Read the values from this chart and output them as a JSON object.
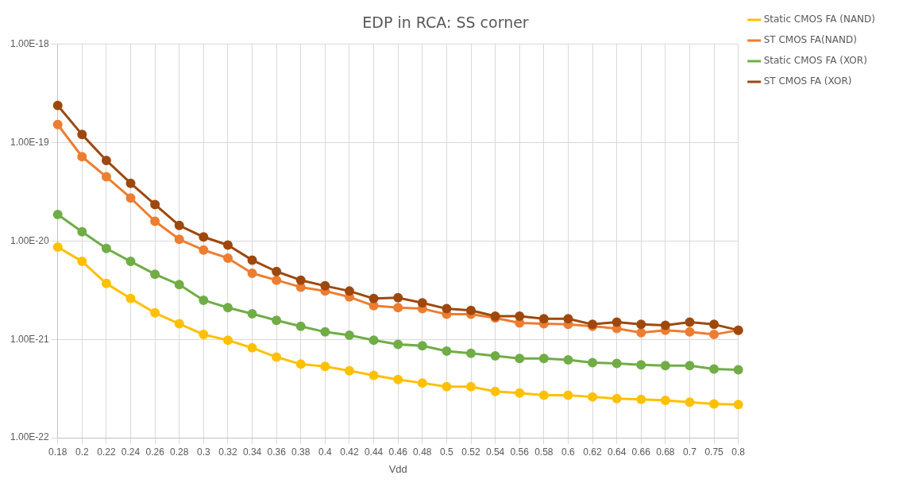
{
  "chart_data": {
    "type": "line",
    "title": "EDP in RCA: SS corner",
    "xlabel": "Vdd",
    "categories": [
      "0.18",
      "0.2",
      "0.22",
      "0.24",
      "0.26",
      "0.28",
      "0.3",
      "0.32",
      "0.34",
      "0.36",
      "0.38",
      "0.4",
      "0.42",
      "0.44",
      "0.46",
      "0.48",
      "0.5",
      "0.52",
      "0.54",
      "0.56",
      "0.58",
      "0.6",
      "0.62",
      "0.64",
      "0.66",
      "0.68",
      "0.7",
      "0.75",
      "0.8"
    ],
    "series": [
      {
        "name": "Static CMOS FA (NAND)",
        "color": "#ffc000",
        "values": [
          8.7e-21,
          6.2e-21,
          3.7e-21,
          2.6e-21,
          1.86e-21,
          1.44e-21,
          1.12e-21,
          9.8e-22,
          8.2e-22,
          6.6e-22,
          5.6e-22,
          5.3e-22,
          4.8e-22,
          4.3e-22,
          3.9e-22,
          3.6e-22,
          3.3e-22,
          3.3e-22,
          2.95e-22,
          2.85e-22,
          2.7e-22,
          2.7e-22,
          2.6e-22,
          2.5e-22,
          2.45e-22,
          2.4e-22,
          2.3e-22,
          2.2e-22,
          2.17e-22
        ]
      },
      {
        "name": "ST CMOS FA(NAND)",
        "color": "#ed7d31",
        "values": [
          1.53e-19,
          7.2e-20,
          4.5e-20,
          2.74e-20,
          1.59e-20,
          1.04e-20,
          8.1e-21,
          6.7e-21,
          4.7e-21,
          4e-21,
          3.4e-21,
          3.1e-21,
          2.7e-21,
          2.2e-21,
          2.1e-21,
          2.05e-21,
          1.8e-21,
          1.8e-21,
          1.65e-21,
          1.47e-21,
          1.44e-21,
          1.42e-21,
          1.36e-21,
          1.29e-21,
          1.17e-21,
          1.24e-21,
          1.19e-21,
          1.12e-21,
          1.24e-21
        ]
      },
      {
        "name": "Static CMOS FA (XOR)",
        "color": "#70ad47",
        "values": [
          1.86e-20,
          1.24e-20,
          8.4e-21,
          6.2e-21,
          4.6e-21,
          3.6e-21,
          2.5e-21,
          2.1e-21,
          1.82e-21,
          1.56e-21,
          1.36e-21,
          1.19e-21,
          1.1e-21,
          9.8e-22,
          8.9e-22,
          8.6e-22,
          7.6e-22,
          7.2e-22,
          6.8e-22,
          6.4e-22,
          6.4e-22,
          6.2e-22,
          5.8e-22,
          5.7e-22,
          5.5e-22,
          5.4e-22,
          5.4e-22,
          5e-22,
          4.9e-22
        ]
      },
      {
        "name": "ST CMOS FA (XOR)",
        "color": "#9e480e",
        "values": [
          2.39e-19,
          1.21e-19,
          6.6e-20,
          3.87e-20,
          2.35e-20,
          1.44e-20,
          1.1e-20,
          9.1e-21,
          6.4e-21,
          4.9e-21,
          4e-21,
          3.5e-21,
          3.1e-21,
          2.6e-21,
          2.65e-21,
          2.35e-21,
          2.05e-21,
          1.97e-21,
          1.72e-21,
          1.72e-21,
          1.62e-21,
          1.62e-21,
          1.42e-21,
          1.5e-21,
          1.42e-21,
          1.39e-21,
          1.5e-21,
          1.42e-21,
          1.24e-21
        ]
      }
    ],
    "log": "y",
    "ylim": [
      1e-22,
      1e-18
    ],
    "yticks": [
      {
        "value": 1e-22,
        "label": "1.00E-22"
      },
      {
        "value": 1e-21,
        "label": "1.00E-21"
      },
      {
        "value": 1e-20,
        "label": "1.00E-20"
      },
      {
        "value": 1e-19,
        "label": "1.00E-19"
      },
      {
        "value": 1e-18,
        "label": "1.00E-18"
      }
    ],
    "grid": true,
    "legend": "right",
    "marker": "circle",
    "line_style": "solid"
  }
}
